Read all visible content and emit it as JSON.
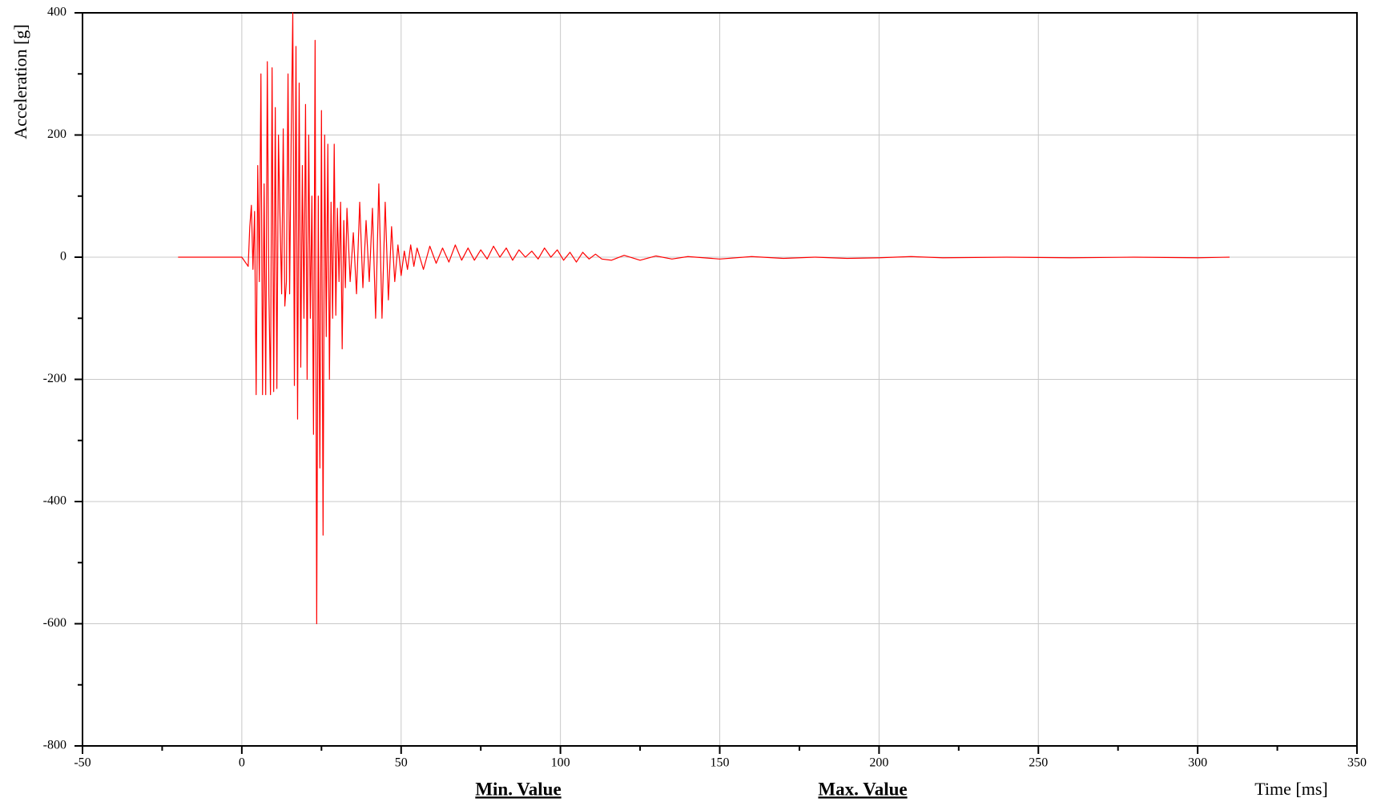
{
  "chart_data": {
    "type": "line",
    "ylabel": "Acceleration [g]",
    "xlabel": "Time [ms]",
    "annotations": [
      "Min. Value",
      "Max. Value"
    ],
    "xlim": [
      -50,
      350
    ],
    "xticks": [
      -50,
      0,
      50,
      100,
      150,
      200,
      250,
      300,
      350
    ],
    "ylim": [
      -800,
      400
    ],
    "yticks": [
      -800,
      -600,
      -400,
      -200,
      0,
      200,
      400
    ],
    "grid": true,
    "x": [
      -20,
      0,
      2,
      2.5,
      3,
      3.5,
      4,
      4.5,
      5,
      5.5,
      6,
      6.5,
      7,
      7.5,
      8,
      8.5,
      9,
      9.5,
      10,
      10.5,
      11,
      11.5,
      12,
      12.5,
      13,
      13.5,
      14,
      14.5,
      15,
      15.5,
      16,
      16.5,
      17,
      17.5,
      18,
      18.5,
      19,
      19.5,
      20,
      20.5,
      21,
      21.5,
      22,
      22.5,
      23,
      23.5,
      24,
      24.5,
      25,
      25.5,
      26,
      26.5,
      27,
      27.5,
      28,
      28.5,
      29,
      29.5,
      30,
      30.5,
      31,
      31.5,
      32,
      32.5,
      33,
      34,
      35,
      36,
      37,
      38,
      39,
      40,
      41,
      42,
      43,
      44,
      45,
      46,
      47,
      48,
      49,
      50,
      51,
      52,
      53,
      54,
      55,
      57,
      59,
      61,
      63,
      65,
      67,
      69,
      71,
      73,
      75,
      77,
      79,
      81,
      83,
      85,
      87,
      89,
      91,
      93,
      95,
      97,
      99,
      101,
      103,
      105,
      107,
      109,
      111,
      113,
      116,
      120,
      125,
      130,
      135,
      140,
      150,
      160,
      170,
      180,
      190,
      200,
      210,
      220,
      240,
      260,
      280,
      300,
      310
    ],
    "series": [
      {
        "color": "#ff0000",
        "values": [
          0,
          0,
          -15,
          50,
          85,
          -20,
          75,
          -225,
          150,
          -40,
          300,
          -225,
          120,
          -225,
          320,
          -60,
          -225,
          310,
          -220,
          245,
          -215,
          200,
          60,
          -60,
          210,
          -80,
          -40,
          300,
          -60,
          200,
          400,
          -210,
          345,
          -265,
          285,
          -180,
          150,
          -100,
          250,
          -200,
          200,
          -100,
          100,
          -290,
          355,
          -600,
          100,
          -345,
          240,
          -455,
          200,
          -130,
          185,
          -200,
          90,
          -100,
          185,
          -95,
          80,
          -40,
          90,
          -150,
          60,
          -50,
          80,
          -40,
          40,
          -60,
          90,
          -50,
          60,
          -40,
          80,
          -100,
          120,
          -100,
          90,
          -70,
          50,
          -40,
          20,
          -30,
          10,
          -20,
          20,
          -15,
          15,
          -20,
          18,
          -10,
          15,
          -8,
          20,
          -5,
          15,
          -5,
          12,
          -3,
          18,
          0,
          15,
          -5,
          12,
          0,
          10,
          -3,
          15,
          0,
          12,
          -5,
          8,
          -8,
          8,
          -3,
          5,
          -3,
          -5,
          3,
          -5,
          2,
          -3,
          1,
          -3,
          1,
          -2,
          0,
          -2,
          -1,
          1,
          -1,
          0,
          -1,
          0,
          -1,
          0
        ]
      }
    ]
  }
}
